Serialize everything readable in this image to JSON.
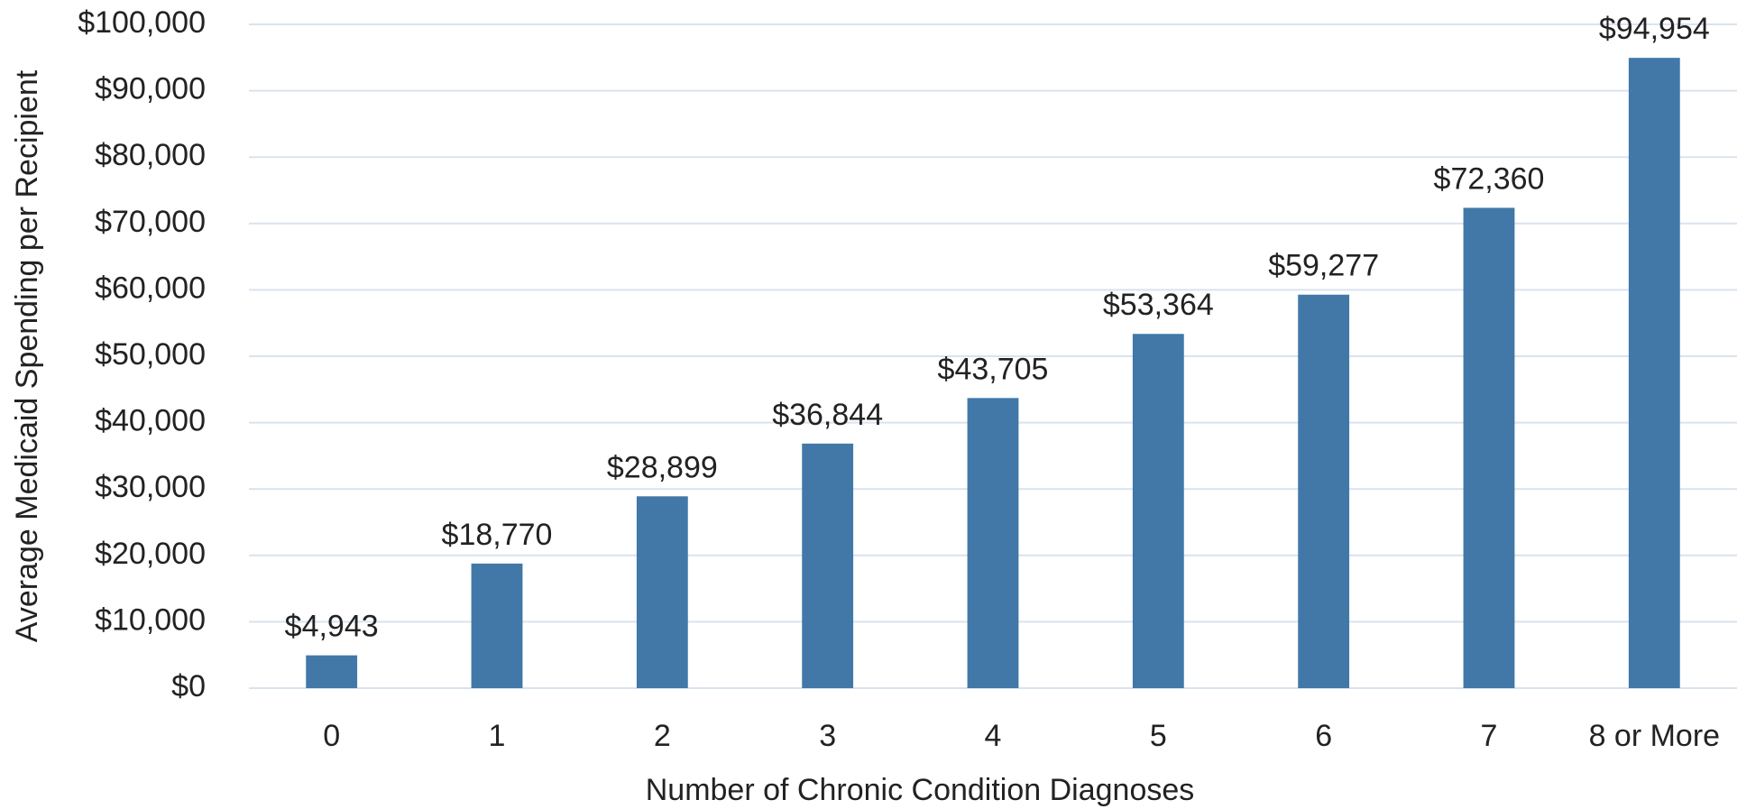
{
  "chart_data": {
    "type": "bar",
    "x_label": "Number of Chronic Condition Diagnoses",
    "y_label": "Average Medicaid Spending per Recipient",
    "categories": [
      "0",
      "1",
      "2",
      "3",
      "4",
      "5",
      "6",
      "7",
      "8 or More"
    ],
    "values": [
      4943,
      18770,
      28899,
      36844,
      43705,
      53364,
      59277,
      72360,
      94954
    ],
    "value_labels": [
      "$4,943",
      "$18,770",
      "$28,899",
      "$36,844",
      "$43,705",
      "$53,364",
      "$59,277",
      "$72,360",
      "$94,954"
    ],
    "color": "#4178a8",
    "ylim": [
      0,
      100000
    ],
    "yticks": [
      {
        "value": 0,
        "label": "$0"
      },
      {
        "value": 10000,
        "label": "$10,000"
      },
      {
        "value": 20000,
        "label": "$20,000"
      },
      {
        "value": 30000,
        "label": "$30,000"
      },
      {
        "value": 40000,
        "label": "$40,000"
      },
      {
        "value": 50000,
        "label": "$50,000"
      },
      {
        "value": 60000,
        "label": "$60,000"
      },
      {
        "value": 70000,
        "label": "$70,000"
      },
      {
        "value": 80000,
        "label": "$80,000"
      },
      {
        "value": 90000,
        "label": "$90,000"
      },
      {
        "value": 100000,
        "label": "$100,000"
      }
    ],
    "grid": true
  }
}
